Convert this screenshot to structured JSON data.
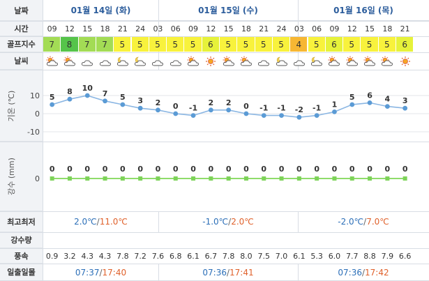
{
  "labels": {
    "date": "날짜",
    "time": "시간",
    "golf_index": "골프지수",
    "weather": "날씨",
    "temperature_axis": "기온 (℃)",
    "rain_axis": "강수 (mm)",
    "minmax": "최고최저",
    "precip_amount": "강수량",
    "wind_speed": "풍속",
    "sunrise_sunset": "일출일몰"
  },
  "days": [
    {
      "label": "01월 14일 (화)",
      "min": "2.0℃",
      "max": "11.0℃",
      "sunrise": "07:37",
      "sunset": "17:40"
    },
    {
      "label": "01월 15일 (수)",
      "min": "-1.0℃",
      "max": "2.0℃",
      "sunrise": "07:36",
      "sunset": "17:41"
    },
    {
      "label": "01월 16일 (목)",
      "min": "-2.0℃",
      "max": "7.0℃",
      "sunrise": "07:36",
      "sunset": "17:42"
    }
  ],
  "slash": "/",
  "times": [
    "09",
    "12",
    "15",
    "18",
    "21",
    "24",
    "03",
    "06",
    "09",
    "12",
    "15",
    "18",
    "21",
    "24",
    "03",
    "06",
    "09",
    "12",
    "15",
    "18",
    "21"
  ],
  "golf_index": [
    "7",
    "8",
    "7",
    "7",
    "5",
    "5",
    "5",
    "5",
    "5",
    "6",
    "5",
    "5",
    "5",
    "5",
    "4",
    "5",
    "6",
    "5",
    "5",
    "5",
    "6"
  ],
  "golf_colors": {
    "8": "#56c44a",
    "7": "#a3dc55",
    "6": "#e6f23a",
    "5": "#f8f23c",
    "4": "#f7b733"
  },
  "weather_icons": [
    "sun-cloud-icon",
    "sun-cloud-icon",
    "cloud-icon",
    "cloud-icon",
    "moon-cloud-icon",
    "moon-cloud-icon",
    "cloud-icon",
    "cloud-icon",
    "sun-cloud-icon",
    "sun-icon",
    "sun-cloud-icon",
    "sun-cloud-icon",
    "cloud-icon",
    "moon-cloud-icon",
    "cloud-icon",
    "moon-cloud-icon",
    "sun-cloud-icon",
    "sun-cloud-icon",
    "sun-cloud-icon",
    "sun-cloud-icon",
    "sun-icon"
  ],
  "wind_speed": [
    "0.9",
    "3.2",
    "4.3",
    "4.3",
    "7.8",
    "7.2",
    "7.6",
    "6.8",
    "6.1",
    "6.7",
    "7.8",
    "8.0",
    "7.5",
    "7.0",
    "6.1",
    "5.3",
    "6.0",
    "7.7",
    "8.8",
    "7.9",
    "6.6"
  ],
  "colors": {
    "temp_line": "#8ab6e3",
    "temp_point": "#5b9bd5",
    "rain_line": "#8fdc6a",
    "rain_point": "#7ed35a"
  },
  "chart_data": [
    {
      "type": "line",
      "x": [
        "09",
        "12",
        "15",
        "18",
        "21",
        "24",
        "03",
        "06",
        "09",
        "12",
        "15",
        "18",
        "21",
        "24",
        "03",
        "06",
        "09",
        "12",
        "15",
        "18",
        "21"
      ],
      "values": [
        5,
        8,
        10,
        7,
        5,
        3,
        2,
        0,
        -1,
        2,
        2,
        0,
        -1,
        -1,
        -2,
        -1,
        1,
        5,
        6,
        4,
        3
      ],
      "ylabel": "기온 (℃)",
      "yticks": [
        10,
        0,
        -10
      ],
      "ylim": [
        -10,
        10
      ],
      "grid": true
    },
    {
      "type": "line",
      "x": [
        "09",
        "12",
        "15",
        "18",
        "21",
        "24",
        "03",
        "06",
        "09",
        "12",
        "15",
        "18",
        "21",
        "24",
        "03",
        "06",
        "09",
        "12",
        "15",
        "18",
        "21"
      ],
      "values": [
        0,
        0,
        0,
        0,
        0,
        0,
        0,
        0,
        0,
        0,
        0,
        0,
        0,
        0,
        0,
        0,
        0,
        0,
        0,
        0,
        0
      ],
      "ylabel": "강수 (mm)",
      "yticks": [
        0
      ],
      "grid": false
    }
  ]
}
